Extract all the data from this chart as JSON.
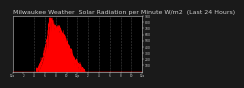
{
  "title": "Milwaukee Weather  Solar Radiation per Minute W/m2  (Last 24 Hours)",
  "title_fontsize": 4.5,
  "bg_color": "#1a1a1a",
  "plot_bg_color": "#000000",
  "fill_color": "#ff0000",
  "line_color": "#ff0000",
  "grid_color": "#555555",
  "text_color": "#cccccc",
  "ylim": [
    0,
    900
  ],
  "yticks": [
    100,
    200,
    300,
    400,
    500,
    600,
    700,
    800,
    900
  ],
  "num_points": 1440,
  "peak_index": 420,
  "peak_value": 870,
  "data_start": 240,
  "data_end": 820,
  "noise_level": 35,
  "x_tick_positions": [
    0,
    120,
    240,
    360,
    480,
    600,
    720,
    840,
    960,
    1080,
    1200,
    1320,
    1440
  ],
  "x_tick_labels": [
    "12a",
    "2",
    "4",
    "6",
    "8",
    "10",
    "12p",
    "2",
    "4",
    "6",
    "8",
    "10",
    "12a"
  ],
  "grid_x_positions": [
    240,
    360,
    480,
    600,
    720,
    840,
    960,
    1080,
    1200,
    1320
  ]
}
